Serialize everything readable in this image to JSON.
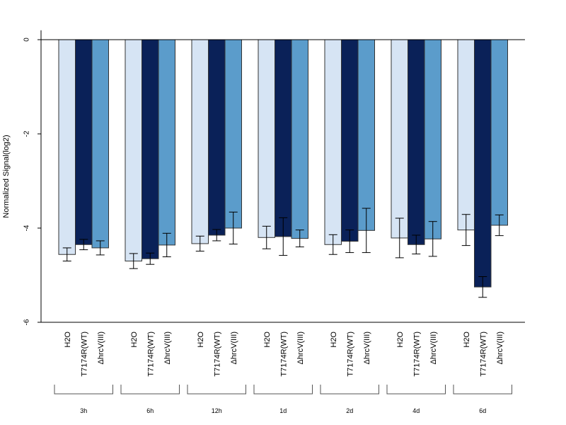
{
  "chart_data": {
    "type": "bar",
    "title": "",
    "ylabel": "Normalized Signal(log2)",
    "xlabel": "",
    "ylim": [
      -6,
      0.2
    ],
    "yticks": [
      0,
      -2,
      -4,
      -6
    ],
    "groups": [
      "3h",
      "6h",
      "12h",
      "1d",
      "2d",
      "4d",
      "6d"
    ],
    "series": [
      {
        "label": "H2O",
        "color": "#d6e4f4",
        "values": [
          -4.56,
          -4.7,
          -4.33,
          -4.2,
          -4.35,
          -4.21,
          -4.04
        ],
        "errors": [
          0.14,
          0.16,
          0.16,
          0.24,
          0.21,
          0.42,
          0.33
        ]
      },
      {
        "label": "T7174R(WT)",
        "color": "#0a2158",
        "values": [
          -4.35,
          -4.65,
          -4.15,
          -4.18,
          -4.28,
          -4.35,
          -5.25
        ],
        "errors": [
          0.11,
          0.12,
          0.12,
          0.4,
          0.24,
          0.2,
          0.22
        ]
      },
      {
        "label": "ΔhrcV(III)",
        "color": "#5b9ccb",
        "values": [
          -4.42,
          -4.36,
          -4.0,
          -4.22,
          -4.05,
          -4.23,
          -3.94
        ],
        "errors": [
          0.15,
          0.25,
          0.34,
          0.18,
          0.47,
          0.37,
          0.22
        ]
      }
    ],
    "grid": false,
    "legend": "none"
  }
}
